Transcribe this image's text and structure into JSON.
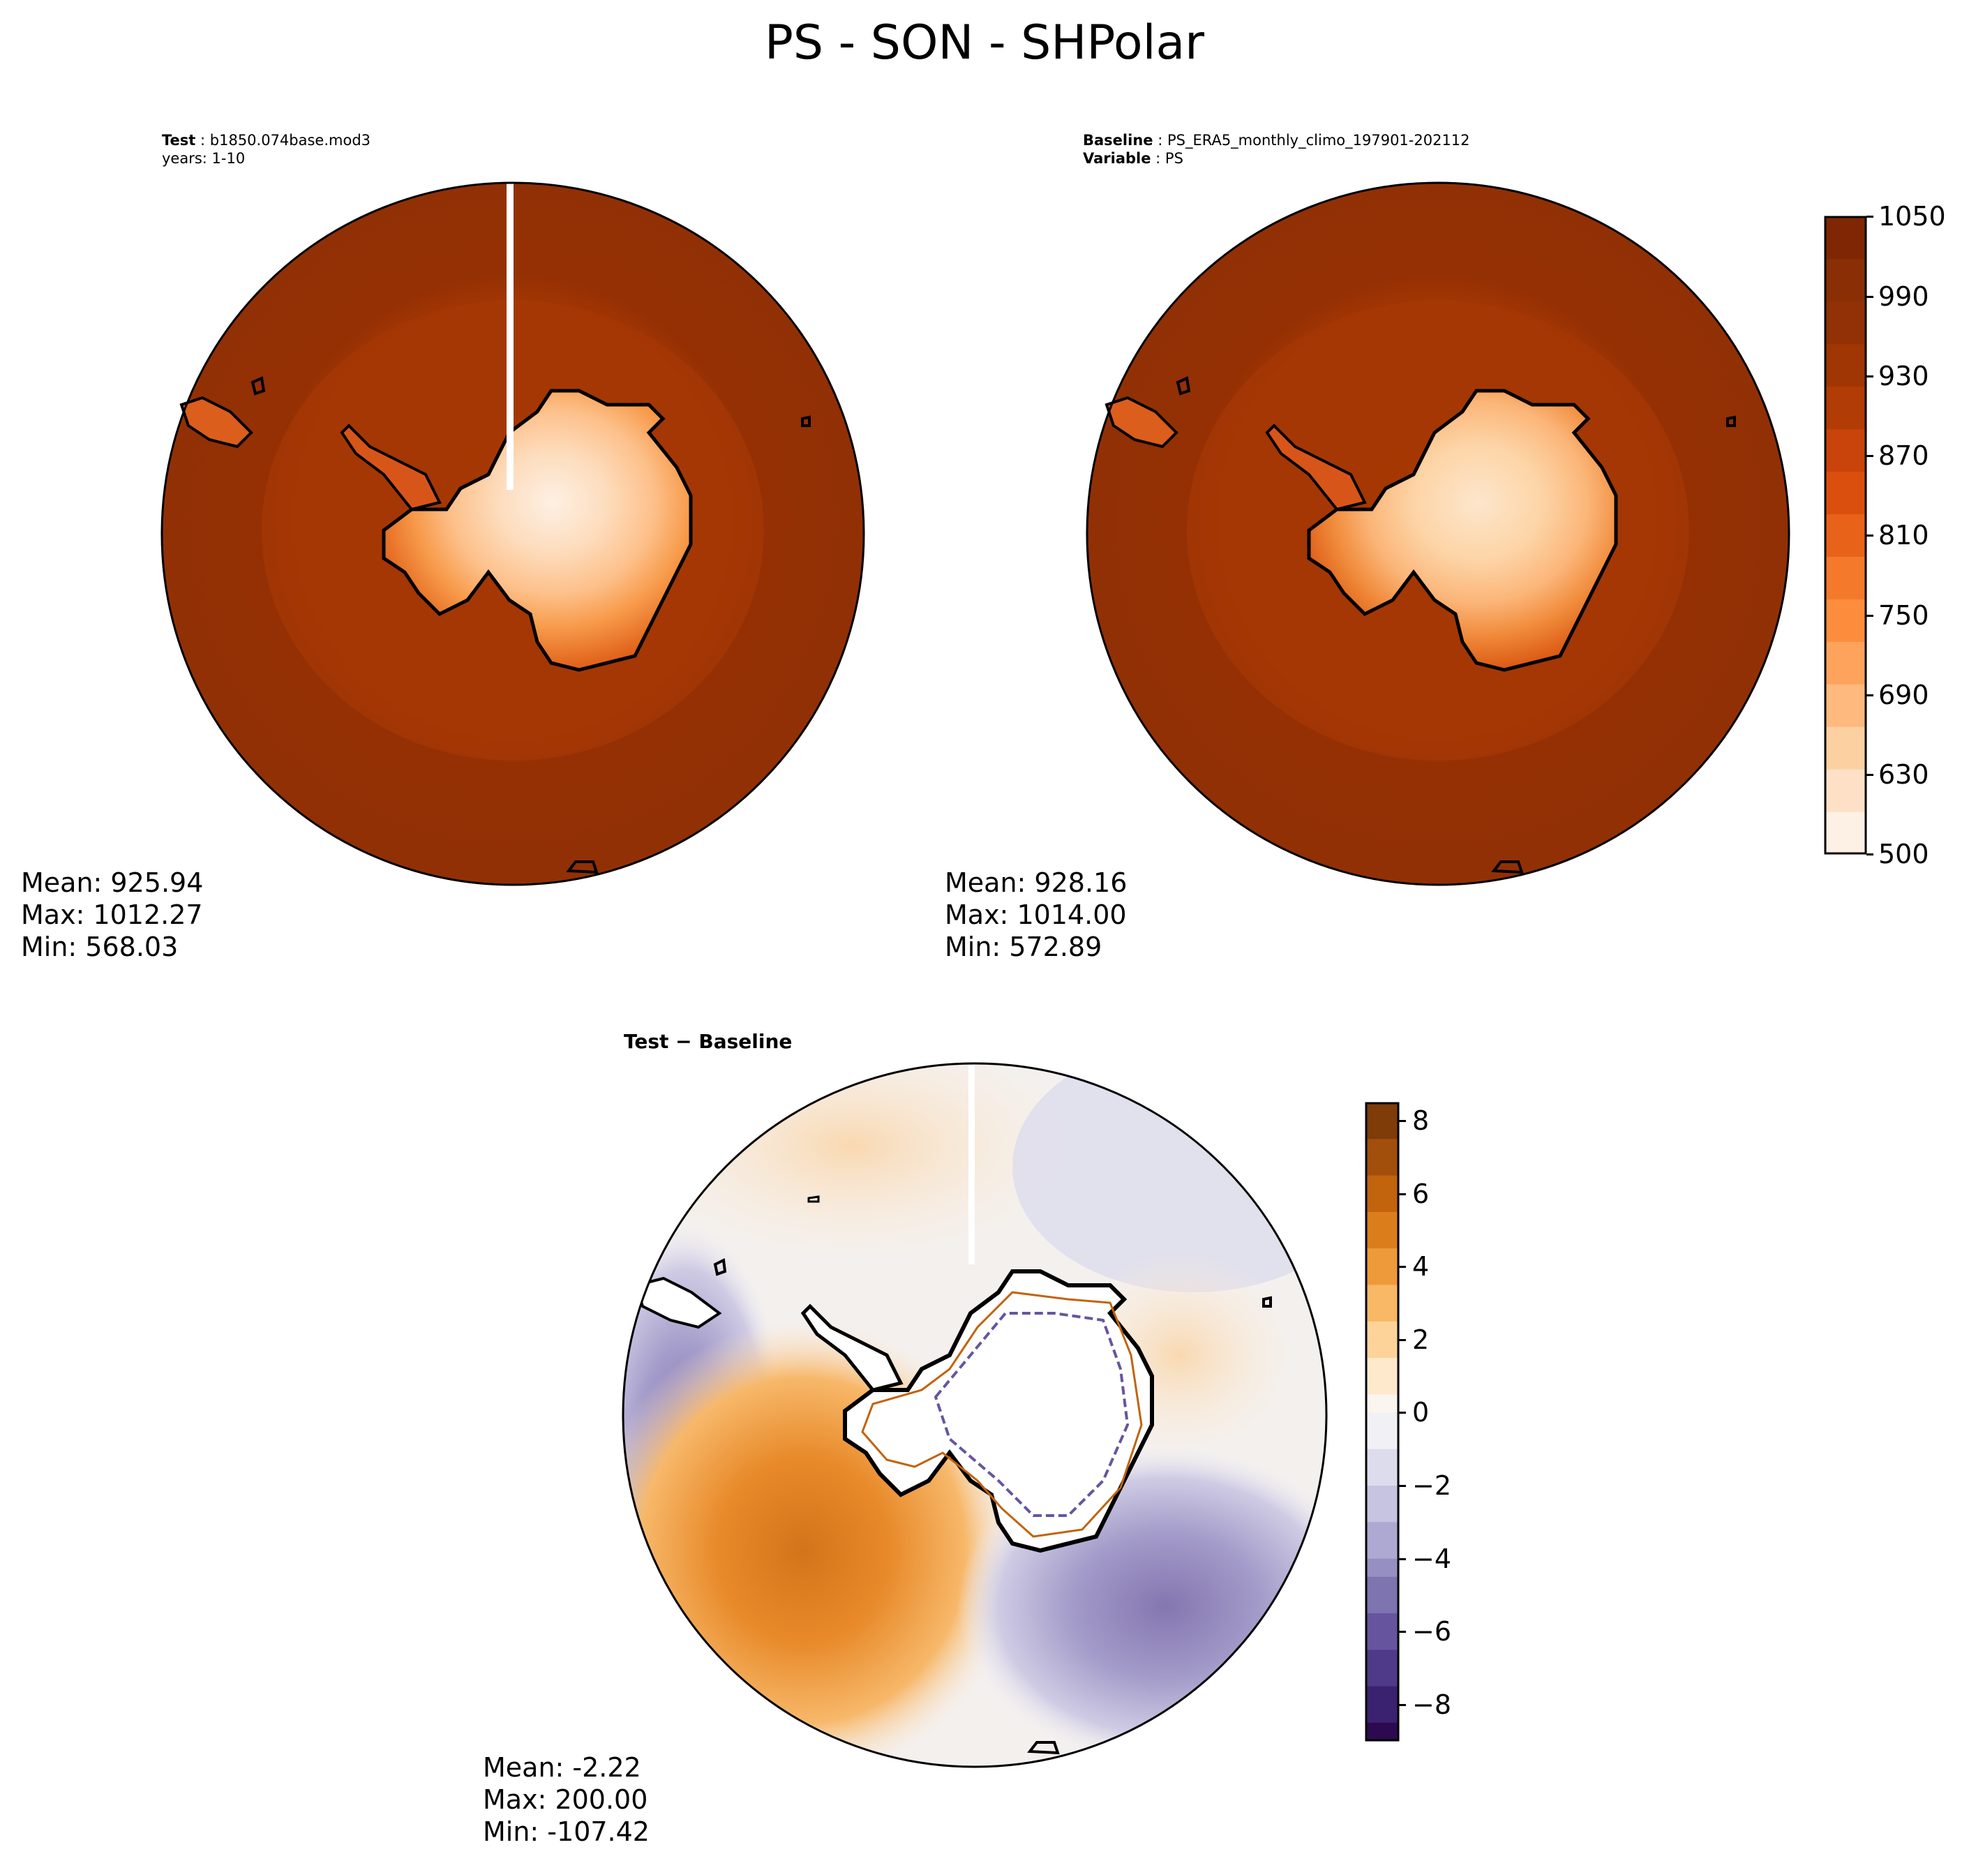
{
  "title": "PS - SON - SHPolar",
  "test_panel": {
    "label_bold": "Test",
    "label_value": "b1850.074base.mod3",
    "years": "years: 1-10",
    "stats": {
      "mean": "Mean: 925.94",
      "max": "Max: 1012.27",
      "min": "Min: 568.03"
    }
  },
  "baseline_panel": {
    "label_bold": "Baseline",
    "label_value": "PS_ERA5_monthly_climo_197901-202112",
    "var_bold": "Variable",
    "var_value": "PS",
    "stats": {
      "mean": "Mean: 928.16",
      "max": "Max: 1014.00",
      "min": "Min: 572.89"
    }
  },
  "diff_panel": {
    "title_test": "Test",
    "title_sep": " − ",
    "title_base": "Baseline",
    "stats": {
      "mean": "Mean: -2.22",
      "max": "Max: 200.00",
      "min": "Min: -107.42"
    }
  },
  "colorbar_main": {
    "ticks": [
      "1050",
      "990",
      "930",
      "870",
      "810",
      "750",
      "690",
      "630",
      "500"
    ],
    "colors": [
      "#fdf0e4",
      "#fde0c5",
      "#fdd0a2",
      "#fdb97e",
      "#fda35c",
      "#fd8d3c",
      "#f4792a",
      "#e8621a",
      "#db4f0e",
      "#c8440a",
      "#b23c05",
      "#a03603",
      "#923105",
      "#8a2f05",
      "#7f2704"
    ]
  },
  "colorbar_diff": {
    "ticks": [
      "8",
      "6",
      "4",
      "2",
      "0",
      "−2",
      "−4",
      "−6",
      "−8"
    ],
    "colors_pos": [
      "#7f3b08",
      "#a14f0a",
      "#c2630e",
      "#dc7d1c",
      "#ee9a3a",
      "#f8b865",
      "#fdd39a",
      "#fee9cc",
      "#faf5ee"
    ],
    "colors_neg": [
      "#f0f0f5",
      "#dcdcec",
      "#c6c4e0",
      "#aea9d2",
      "#9690c2",
      "#7d74b0",
      "#66559e",
      "#4f3a8a",
      "#3a2270",
      "#2d0a50"
    ]
  },
  "chart_data": {
    "type": "polar-map",
    "projection": "South Polar Stereographic",
    "season": "SON",
    "variable": "PS",
    "panels": [
      {
        "name": "Test",
        "mean": 925.94,
        "max": 1012.27,
        "min": 568.03,
        "colorbar_range": [
          500,
          1050
        ]
      },
      {
        "name": "Baseline",
        "mean": 928.16,
        "max": 1014.0,
        "min": 572.89,
        "colorbar_range": [
          500,
          1050
        ]
      },
      {
        "name": "Test − Baseline",
        "mean": -2.22,
        "max": 200.0,
        "min": -107.42,
        "colorbar_range": [
          -9,
          8.5
        ]
      }
    ]
  }
}
